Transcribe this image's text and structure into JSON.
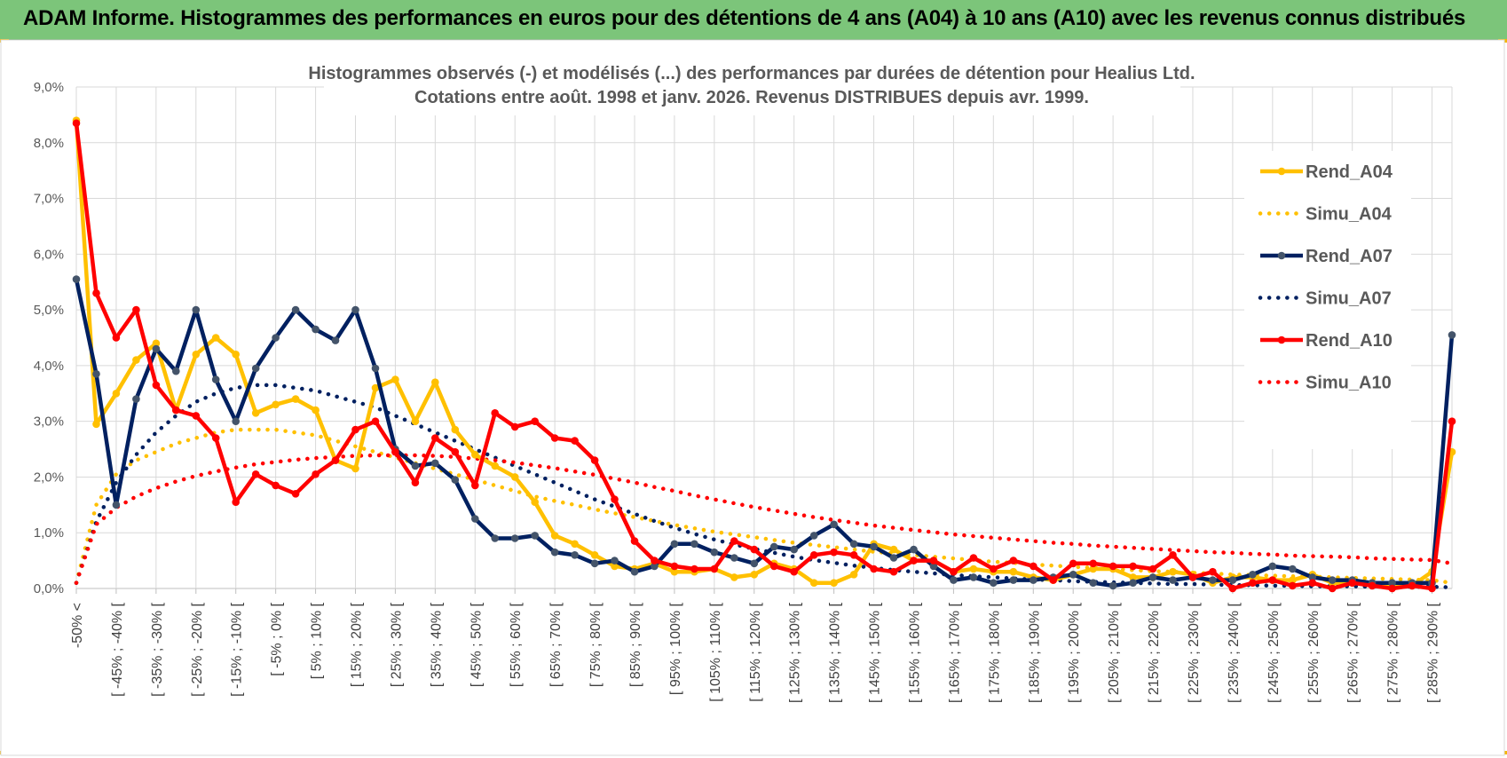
{
  "header": {
    "title": "ADAM Informe. Histogrammes des performances en euros pour des détentions de 4 ans (A04) à 10 ans (A10) avec les revenus connus distribués"
  },
  "chart_data": {
    "type": "line",
    "title_line1": "Histogrammes observés (-) et modélisés (...) des performances par durées de détention pour Healius Ltd.",
    "title_line2": "Cotations entre août. 1998 et janv. 2026. Revenus DISTRIBUES depuis avr. 1999.",
    "xlabel": "",
    "ylabel": "",
    "ylim": [
      0,
      9
    ],
    "y_ticks": [
      "0,0%",
      "1,0%",
      "2,0%",
      "3,0%",
      "4,0%",
      "5,0%",
      "6,0%",
      "7,0%",
      "8,0%",
      "9,0%"
    ],
    "x_labels": [
      "-50% <",
      "[ -45% ; -40% [",
      "[ -35% ; -30% [",
      "[ -25% ; -20% [",
      "[ -15% ; -10% [",
      "[ -5% ; 0% [",
      "[ 5% ; 10% [",
      "[ 15% ; 20% [",
      "[ 25% ; 30% [",
      "[ 35% ; 40% [",
      "[ 45% ; 50% [",
      "[ 55% ; 60% [",
      "[ 65% ; 70% [",
      "[ 75% ; 80% [",
      "[ 85% ; 90% [",
      "[ 95% ; 100% [",
      "[ 105% ; 110% [",
      "[ 115% ; 120% [",
      "[ 125% ; 130% [",
      "[ 135% ; 140% [",
      "[ 145% ; 150% [",
      "[ 155% ; 160% [",
      "[ 165% ; 170% [",
      "[ 175% ; 180% [",
      "[ 185% ; 190% [",
      "[ 195% ; 200% [",
      "[ 205% ; 210% [",
      "[ 215% ; 220% [",
      "[ 225% ; 230% [",
      "[ 235% ; 240% [",
      "[ 245% ; 250% [",
      "[ 255% ; 260% [",
      "[ 265% ; 270% [",
      "[ 275% ; 280% [",
      "[ 285% ; 290% ["
    ],
    "n_points": 70,
    "legend_position": "right",
    "series": [
      {
        "name": "Rend_A04",
        "style": "solid",
        "color": "#ffc000",
        "values": [
          8.4,
          2.95,
          3.5,
          4.1,
          4.4,
          3.2,
          4.2,
          4.5,
          4.2,
          3.15,
          3.3,
          3.4,
          3.2,
          2.3,
          2.15,
          3.6,
          3.75,
          3.0,
          3.7,
          2.85,
          2.4,
          2.2,
          2.0,
          1.55,
          0.95,
          0.8,
          0.6,
          0.4,
          0.35,
          0.45,
          0.3,
          0.3,
          0.35,
          0.2,
          0.25,
          0.45,
          0.35,
          0.1,
          0.1,
          0.25,
          0.8,
          0.7,
          0.5,
          0.5,
          0.3,
          0.35,
          0.3,
          0.3,
          0.2,
          0.15,
          0.25,
          0.35,
          0.35,
          0.2,
          0.2,
          0.3,
          0.25,
          0.1,
          0.2,
          0.2,
          0.15,
          0.15,
          0.25,
          0.1,
          0.1,
          0.1,
          0.05,
          0.05,
          0.3,
          2.45
        ]
      },
      {
        "name": "Simu_A04",
        "style": "dotted",
        "color": "#ffc000",
        "values": [
          0.1,
          1.5,
          2.05,
          2.3,
          2.45,
          2.6,
          2.7,
          2.8,
          2.85,
          2.85,
          2.85,
          2.8,
          2.75,
          2.65,
          2.55,
          2.45,
          2.35,
          2.25,
          2.15,
          2.05,
          1.95,
          1.85,
          1.75,
          1.65,
          1.57,
          1.5,
          1.42,
          1.35,
          1.28,
          1.21,
          1.14,
          1.08,
          1.02,
          0.97,
          0.92,
          0.87,
          0.82,
          0.78,
          0.74,
          0.7,
          0.66,
          0.63,
          0.6,
          0.57,
          0.54,
          0.51,
          0.48,
          0.46,
          0.43,
          0.41,
          0.39,
          0.37,
          0.35,
          0.33,
          0.31,
          0.3,
          0.28,
          0.27,
          0.25,
          0.24,
          0.23,
          0.22,
          0.21,
          0.2,
          0.19,
          0.18,
          0.17,
          0.16,
          0.15,
          0.1
        ]
      },
      {
        "name": "Rend_A07",
        "style": "solid",
        "color": "#002060",
        "values": [
          5.55,
          3.85,
          1.5,
          3.4,
          4.3,
          3.9,
          5.0,
          3.75,
          3.0,
          3.95,
          4.5,
          5.0,
          4.65,
          4.45,
          5.0,
          3.95,
          2.5,
          2.2,
          2.25,
          1.95,
          1.25,
          0.9,
          0.9,
          0.95,
          0.65,
          0.6,
          0.45,
          0.5,
          0.3,
          0.4,
          0.8,
          0.8,
          0.65,
          0.55,
          0.45,
          0.75,
          0.7,
          0.95,
          1.15,
          0.8,
          0.75,
          0.55,
          0.7,
          0.4,
          0.15,
          0.2,
          0.1,
          0.15,
          0.15,
          0.2,
          0.25,
          0.1,
          0.05,
          0.1,
          0.2,
          0.15,
          0.2,
          0.15,
          0.15,
          0.25,
          0.4,
          0.35,
          0.2,
          0.15,
          0.15,
          0.1,
          0.1,
          0.1,
          0.1,
          4.55
        ]
      },
      {
        "name": "Simu_A07",
        "style": "dotted",
        "color": "#002060",
        "values": [
          0.1,
          1.2,
          1.9,
          2.4,
          2.8,
          3.1,
          3.35,
          3.5,
          3.6,
          3.65,
          3.65,
          3.6,
          3.55,
          3.45,
          3.35,
          3.25,
          3.1,
          2.95,
          2.8,
          2.65,
          2.5,
          2.35,
          2.2,
          2.05,
          1.9,
          1.75,
          1.6,
          1.47,
          1.34,
          1.21,
          1.09,
          0.98,
          0.88,
          0.79,
          0.71,
          0.64,
          0.57,
          0.51,
          0.46,
          0.41,
          0.37,
          0.33,
          0.3,
          0.27,
          0.24,
          0.22,
          0.2,
          0.18,
          0.16,
          0.15,
          0.13,
          0.12,
          0.11,
          0.1,
          0.09,
          0.08,
          0.08,
          0.07,
          0.06,
          0.06,
          0.05,
          0.05,
          0.04,
          0.04,
          0.04,
          0.03,
          0.03,
          0.03,
          0.03,
          0.02
        ]
      },
      {
        "name": "Rend_A10",
        "style": "solid",
        "color": "#ff0000",
        "values": [
          8.35,
          5.3,
          4.5,
          5.0,
          3.65,
          3.2,
          3.1,
          2.7,
          1.55,
          2.05,
          1.85,
          1.7,
          2.05,
          2.3,
          2.85,
          3.0,
          2.45,
          1.9,
          2.7,
          2.45,
          1.85,
          3.15,
          2.9,
          3.0,
          2.7,
          2.65,
          2.3,
          1.6,
          0.85,
          0.5,
          0.4,
          0.35,
          0.35,
          0.85,
          0.7,
          0.4,
          0.3,
          0.6,
          0.65,
          0.6,
          0.35,
          0.3,
          0.5,
          0.5,
          0.3,
          0.55,
          0.35,
          0.5,
          0.4,
          0.15,
          0.45,
          0.45,
          0.4,
          0.4,
          0.35,
          0.6,
          0.2,
          0.3,
          0.0,
          0.1,
          0.15,
          0.05,
          0.1,
          0.0,
          0.1,
          0.05,
          0.0,
          0.05,
          0.0,
          3.0
        ]
      },
      {
        "name": "Simu_A10",
        "style": "dotted",
        "color": "#ff0000",
        "values": [
          0.1,
          1.15,
          1.45,
          1.65,
          1.8,
          1.92,
          2.02,
          2.1,
          2.17,
          2.23,
          2.27,
          2.31,
          2.34,
          2.36,
          2.38,
          2.39,
          2.39,
          2.39,
          2.38,
          2.36,
          2.33,
          2.3,
          2.26,
          2.21,
          2.16,
          2.1,
          2.04,
          1.97,
          1.9,
          1.82,
          1.75,
          1.67,
          1.6,
          1.53,
          1.46,
          1.4,
          1.34,
          1.28,
          1.23,
          1.18,
          1.13,
          1.09,
          1.05,
          1.01,
          0.97,
          0.94,
          0.91,
          0.88,
          0.85,
          0.82,
          0.8,
          0.77,
          0.75,
          0.73,
          0.71,
          0.69,
          0.67,
          0.65,
          0.64,
          0.62,
          0.61,
          0.59,
          0.58,
          0.57,
          0.56,
          0.54,
          0.53,
          0.52,
          0.51,
          0.45
        ]
      }
    ]
  }
}
